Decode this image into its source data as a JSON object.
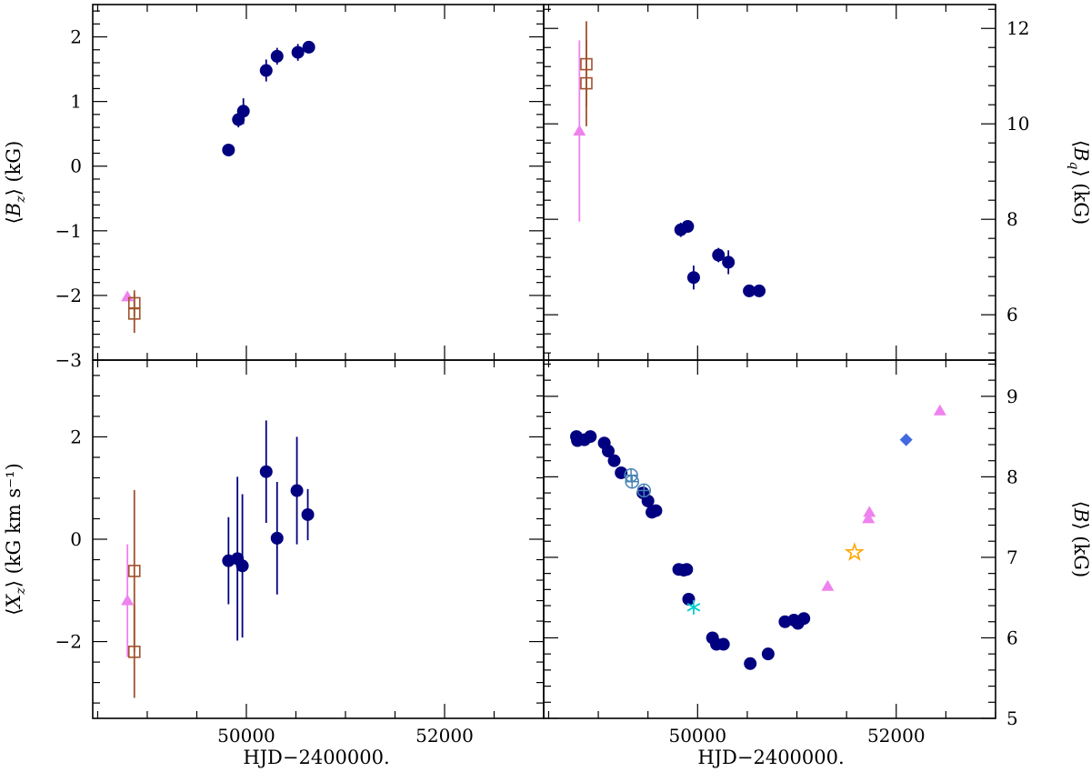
{
  "figure": {
    "x_axis_title": "HJD−2400000.",
    "colors": {
      "navy": "#000080",
      "violet": "#ee82ee",
      "brown": "#a0522d",
      "steel": "#4682b4",
      "cyan": "#00ced1",
      "orange": "#ffa500",
      "royal": "#4169e1"
    }
  },
  "chart_data": [
    {
      "id": "Bz",
      "type": "scatter",
      "position": "top-left",
      "ylabel": "⟨B_z⟩ (kG)",
      "ylabel_parts": [
        "⟨",
        "B",
        "z",
        "⟩ (kG)"
      ],
      "xlim": [
        48450,
        53000
      ],
      "ylim": [
        -3,
        2.5
      ],
      "xticks": [],
      "xtick_labels": [],
      "yticks": [
        -3,
        -2,
        -1,
        0,
        1,
        2
      ],
      "ytick_labels": [
        "−3",
        "−2",
        "−1",
        "0",
        "1",
        "2"
      ],
      "y_axis_side": "left",
      "series": [
        {
          "name": "filled circles",
          "marker": "circle-filled",
          "color": "#000080",
          "points": [
            [
              49820,
              0.25,
              0.08
            ],
            [
              49920,
              0.72,
              0.12
            ],
            [
              49970,
              0.85,
              0.2
            ],
            [
              50200,
              1.48,
              0.17
            ],
            [
              50310,
              1.7,
              0.13
            ],
            [
              50520,
              1.76,
              0.13
            ],
            [
              50630,
              1.84,
              0.09
            ]
          ]
        },
        {
          "name": "triangles",
          "marker": "triangle",
          "color": "#ee82ee",
          "points": [
            [
              48800,
              -2.02,
              0
            ]
          ]
        },
        {
          "name": "open squares",
          "marker": "square-open",
          "color": "#a0522d",
          "points": [
            [
              48870,
              -2.12,
              0.2
            ],
            [
              48870,
              -2.28,
              0.3
            ]
          ]
        }
      ]
    },
    {
      "id": "Bq",
      "type": "scatter",
      "position": "top-right",
      "ylabel": "⟨B_q⟩ (kG)",
      "ylabel_parts": [
        "⟨",
        "B",
        "q",
        "⟩ (kG)"
      ],
      "xlim": [
        48450,
        53000
      ],
      "ylim": [
        5.05,
        12.5
      ],
      "xticks": [],
      "xtick_labels": [],
      "yticks": [
        6,
        8,
        10,
        12
      ],
      "ytick_labels": [
        "6",
        "8",
        "10",
        "12"
      ],
      "y_axis_side": "right",
      "series": [
        {
          "name": "filled circles",
          "marker": "circle-filled",
          "color": "#000080",
          "points": [
            [
              49830,
              7.78,
              0.15
            ],
            [
              49900,
              7.85,
              0.1
            ],
            [
              49960,
              6.78,
              0.25
            ],
            [
              50210,
              7.25,
              0.15
            ],
            [
              50310,
              7.1,
              0.25
            ],
            [
              50520,
              6.5,
              0.08
            ],
            [
              50620,
              6.5,
              0.08
            ]
          ]
        },
        {
          "name": "triangles",
          "marker": "triangle",
          "color": "#ee82ee",
          "points": [
            [
              48810,
              9.85,
              1.9
            ]
          ]
        },
        {
          "name": "open squares",
          "marker": "square-open",
          "color": "#a0522d",
          "points": [
            [
              48880,
              11.25,
              0.9
            ],
            [
              48880,
              10.85,
              0.9
            ]
          ]
        }
      ]
    },
    {
      "id": "Xz",
      "type": "scatter",
      "position": "bottom-left",
      "ylabel": "⟨X_z⟩ (kG km s⁻¹)",
      "ylabel_parts": [
        "⟨",
        "X",
        "z",
        "⟩ (kG km s⁻¹)"
      ],
      "xlim": [
        48450,
        53000
      ],
      "ylim": [
        -3.5,
        3.5
      ],
      "xticks": [
        50000,
        52000
      ],
      "xtick_labels": [
        "50000",
        "52000"
      ],
      "yticks": [
        -2,
        0,
        2
      ],
      "ytick_labels": [
        "−2",
        "0",
        "2"
      ],
      "y_axis_side": "left",
      "series": [
        {
          "name": "filled circles",
          "marker": "circle-filled",
          "color": "#000080",
          "points": [
            [
              49820,
              -0.42,
              0.85
            ],
            [
              49910,
              -0.38,
              1.6
            ],
            [
              49960,
              -0.52,
              1.4
            ],
            [
              50200,
              1.32,
              1.0
            ],
            [
              50310,
              0.02,
              1.1
            ],
            [
              50510,
              0.95,
              1.05
            ],
            [
              50620,
              0.48,
              0.5
            ]
          ]
        },
        {
          "name": "triangles",
          "marker": "triangle",
          "color": "#ee82ee",
          "points": [
            [
              48800,
              -1.2,
              1.1
            ]
          ]
        },
        {
          "name": "open squares",
          "marker": "square-open",
          "color": "#a0522d",
          "points": [
            [
              48870,
              -0.62,
              1.58
            ],
            [
              48870,
              -2.2,
              0.9
            ]
          ]
        }
      ]
    },
    {
      "id": "B",
      "type": "scatter",
      "position": "bottom-right",
      "ylabel": "⟨B⟩ (kG)",
      "ylabel_parts": [
        "⟨",
        "B",
        "",
        "⟩ (kG)"
      ],
      "xlim": [
        48450,
        53000
      ],
      "ylim": [
        5,
        9.45
      ],
      "xticks": [
        50000,
        52000
      ],
      "xtick_labels": [
        "50000",
        "52000"
      ],
      "yticks": [
        5,
        6,
        7,
        8,
        9
      ],
      "ytick_labels": [
        "5",
        "6",
        "7",
        "8",
        "9"
      ],
      "y_axis_side": "right",
      "series": [
        {
          "name": "filled circles",
          "marker": "circle-filled",
          "color": "#000080",
          "points": [
            [
              48780,
              8.5,
              0
            ],
            [
              48790,
              8.45,
              0
            ],
            [
              48860,
              8.46,
              0
            ],
            [
              48920,
              8.5,
              0
            ],
            [
              49060,
              8.42,
              0
            ],
            [
              49100,
              8.32,
              0
            ],
            [
              49160,
              8.2,
              0
            ],
            [
              49230,
              8.05,
              0
            ],
            [
              49450,
              7.8,
              0
            ],
            [
              49500,
              7.7,
              0
            ],
            [
              49540,
              7.56,
              0
            ],
            [
              49580,
              7.58,
              0
            ],
            [
              49810,
              6.85,
              0
            ],
            [
              49860,
              6.84,
              0
            ],
            [
              49890,
              6.85,
              0
            ],
            [
              49910,
              6.48,
              0
            ],
            [
              50150,
              6.0,
              0
            ],
            [
              50190,
              5.92,
              0
            ],
            [
              50260,
              5.92,
              0
            ],
            [
              50530,
              5.68,
              0
            ],
            [
              50710,
              5.8,
              0
            ],
            [
              50880,
              6.2,
              0
            ],
            [
              50970,
              6.22,
              0
            ],
            [
              51010,
              6.18,
              0
            ],
            [
              51070,
              6.24,
              0
            ]
          ]
        },
        {
          "name": "open circles with plus",
          "marker": "circle-plus",
          "color": "#4682b4",
          "points": [
            [
              49330,
              8.02,
              0
            ],
            [
              49340,
              7.94,
              0
            ],
            [
              49460,
              7.83,
              0
            ]
          ]
        },
        {
          "name": "asterisk",
          "marker": "asterisk",
          "color": "#00ced1",
          "points": [
            [
              49960,
              6.38,
              0
            ]
          ]
        },
        {
          "name": "triangles",
          "marker": "triangle",
          "color": "#ee82ee",
          "points": [
            [
              51310,
              6.64,
              0
            ],
            [
              51720,
              7.48,
              0
            ],
            [
              51730,
              7.56,
              0
            ],
            [
              52440,
              8.82,
              0
            ]
          ]
        },
        {
          "name": "star",
          "marker": "star-open",
          "color": "#ffa500",
          "points": [
            [
              51580,
              7.06,
              0
            ]
          ]
        },
        {
          "name": "diamond",
          "marker": "diamond",
          "color": "#4169e1",
          "points": [
            [
              52100,
              8.46,
              0
            ]
          ]
        }
      ]
    }
  ]
}
